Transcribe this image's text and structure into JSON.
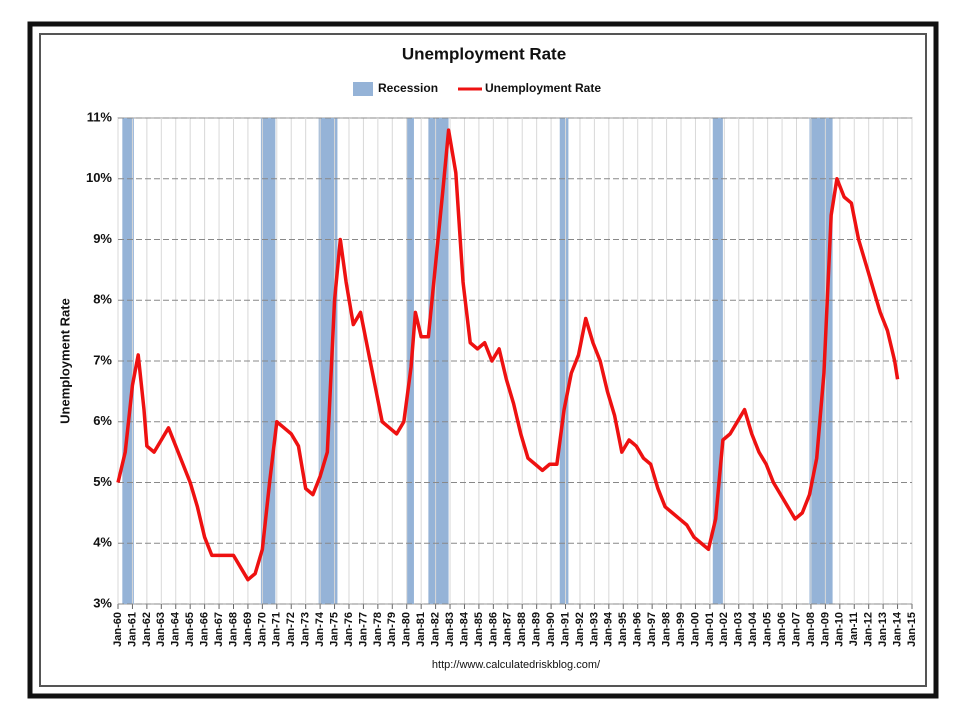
{
  "chart_data": {
    "type": "line",
    "title": "Unemployment Rate",
    "y_label": "Unemployment Rate",
    "source": "http://www.calculatedriskblog.com/",
    "legend": "top",
    "grid": true,
    "recessions": {
      "name": "Recession",
      "color": "#95b3d7",
      "periods": [
        [
          1960.3,
          1961.1
        ],
        [
          1969.9,
          1970.9
        ],
        [
          1973.9,
          1975.2
        ],
        [
          1980.0,
          1980.5
        ],
        [
          1981.5,
          1982.9
        ],
        [
          1990.6,
          1991.2
        ],
        [
          2001.2,
          2001.9
        ],
        [
          2007.9,
          2009.5
        ]
      ]
    },
    "x": [
      1960.0,
      1960.5,
      1961.0,
      1961.4,
      1961.8,
      1962.0,
      1962.5,
      1963.0,
      1963.5,
      1964.0,
      1964.5,
      1965.0,
      1965.5,
      1966.0,
      1966.5,
      1967.0,
      1967.5,
      1968.0,
      1968.5,
      1969.0,
      1969.5,
      1970.0,
      1970.5,
      1971.0,
      1971.5,
      1972.0,
      1972.5,
      1973.0,
      1973.5,
      1974.0,
      1974.5,
      1975.0,
      1975.4,
      1975.8,
      1976.3,
      1976.8,
      1977.3,
      1977.8,
      1978.3,
      1978.8,
      1979.3,
      1979.8,
      1980.3,
      1980.6,
      1981.0,
      1981.5,
      1982.0,
      1982.5,
      1982.9,
      1983.4,
      1983.9,
      1984.4,
      1984.9,
      1985.4,
      1985.9,
      1986.4,
      1986.9,
      1987.4,
      1987.9,
      1988.4,
      1988.9,
      1989.4,
      1989.9,
      1990.4,
      1990.9,
      1991.4,
      1991.9,
      1992.4,
      1992.9,
      1993.4,
      1993.9,
      1994.4,
      1994.9,
      1995.4,
      1995.9,
      1996.4,
      1996.9,
      1997.4,
      1997.9,
      1998.4,
      1998.9,
      1999.4,
      1999.9,
      2000.4,
      2000.9,
      2001.4,
      2001.9,
      2002.4,
      2002.9,
      2003.4,
      2003.9,
      2004.4,
      2004.9,
      2005.4,
      2005.9,
      2006.4,
      2006.9,
      2007.4,
      2007.9,
      2008.4,
      2008.9,
      2009.4,
      2009.8,
      2010.3,
      2010.8,
      2011.3,
      2011.8,
      2012.3,
      2012.8,
      2013.3,
      2013.8,
      2014.0
    ],
    "series": [
      {
        "name": "Unemployment Rate",
        "color": "#ee1111",
        "values": [
          5.0,
          5.5,
          6.6,
          7.1,
          6.2,
          5.6,
          5.5,
          5.7,
          5.9,
          5.6,
          5.3,
          5.0,
          4.6,
          4.1,
          3.8,
          3.8,
          3.8,
          3.8,
          3.6,
          3.4,
          3.5,
          3.9,
          5.0,
          6.0,
          5.9,
          5.8,
          5.6,
          4.9,
          4.8,
          5.1,
          5.5,
          8.0,
          9.0,
          8.3,
          7.6,
          7.8,
          7.2,
          6.6,
          6.0,
          5.9,
          5.8,
          6.0,
          6.9,
          7.8,
          7.4,
          7.4,
          8.6,
          9.8,
          10.8,
          10.1,
          8.3,
          7.3,
          7.2,
          7.3,
          7.0,
          7.2,
          6.7,
          6.3,
          5.8,
          5.4,
          5.3,
          5.2,
          5.3,
          5.3,
          6.2,
          6.8,
          7.1,
          7.7,
          7.3,
          7.0,
          6.5,
          6.1,
          5.5,
          5.7,
          5.6,
          5.4,
          5.3,
          4.9,
          4.6,
          4.5,
          4.4,
          4.3,
          4.1,
          4.0,
          3.9,
          4.4,
          5.7,
          5.8,
          6.0,
          6.2,
          5.8,
          5.5,
          5.3,
          5.0,
          4.8,
          4.6,
          4.4,
          4.5,
          4.8,
          5.4,
          6.8,
          9.4,
          10.0,
          9.7,
          9.6,
          9.0,
          8.6,
          8.2,
          7.8,
          7.5,
          7.0,
          6.7
        ]
      }
    ],
    "xlim": [
      1960,
      2015
    ],
    "ylim": [
      3,
      11
    ],
    "yticks": [
      {
        "value": 3,
        "label": "3%"
      },
      {
        "value": 4,
        "label": "4%"
      },
      {
        "value": 5,
        "label": "5%"
      },
      {
        "value": 6,
        "label": "6%"
      },
      {
        "value": 7,
        "label": "7%"
      },
      {
        "value": 8,
        "label": "8%"
      },
      {
        "value": 9,
        "label": "9%"
      },
      {
        "value": 10,
        "label": "10%"
      },
      {
        "value": 11,
        "label": "11%"
      }
    ],
    "xticks": [
      {
        "value": 1960,
        "label": "Jan-60"
      },
      {
        "value": 1961,
        "label": "Jan-61"
      },
      {
        "value": 1962,
        "label": "Jan-62"
      },
      {
        "value": 1963,
        "label": "Jan-63"
      },
      {
        "value": 1964,
        "label": "Jan-64"
      },
      {
        "value": 1965,
        "label": "Jan-65"
      },
      {
        "value": 1966,
        "label": "Jan-66"
      },
      {
        "value": 1967,
        "label": "Jan-67"
      },
      {
        "value": 1968,
        "label": "Jan-68"
      },
      {
        "value": 1969,
        "label": "Jan-69"
      },
      {
        "value": 1970,
        "label": "Jan-70"
      },
      {
        "value": 1971,
        "label": "Jan-71"
      },
      {
        "value": 1972,
        "label": "Jan-72"
      },
      {
        "value": 1973,
        "label": "Jan-73"
      },
      {
        "value": 1974,
        "label": "Jan-74"
      },
      {
        "value": 1975,
        "label": "Jan-75"
      },
      {
        "value": 1976,
        "label": "Jan-76"
      },
      {
        "value": 1977,
        "label": "Jan-77"
      },
      {
        "value": 1978,
        "label": "Jan-78"
      },
      {
        "value": 1979,
        "label": "Jan-79"
      },
      {
        "value": 1980,
        "label": "Jan-80"
      },
      {
        "value": 1981,
        "label": "Jan-81"
      },
      {
        "value": 1982,
        "label": "Jan-82"
      },
      {
        "value": 1983,
        "label": "Jan-83"
      },
      {
        "value": 1984,
        "label": "Jan-84"
      },
      {
        "value": 1985,
        "label": "Jan-85"
      },
      {
        "value": 1986,
        "label": "Jan-86"
      },
      {
        "value": 1987,
        "label": "Jan-87"
      },
      {
        "value": 1988,
        "label": "Jan-88"
      },
      {
        "value": 1989,
        "label": "Jan-89"
      },
      {
        "value": 1990,
        "label": "Jan-90"
      },
      {
        "value": 1991,
        "label": "Jan-91"
      },
      {
        "value": 1992,
        "label": "Jan-92"
      },
      {
        "value": 1993,
        "label": "Jan-93"
      },
      {
        "value": 1994,
        "label": "Jan-94"
      },
      {
        "value": 1995,
        "label": "Jan-95"
      },
      {
        "value": 1996,
        "label": "Jan-96"
      },
      {
        "value": 1997,
        "label": "Jan-97"
      },
      {
        "value": 1998,
        "label": "Jan-98"
      },
      {
        "value": 1999,
        "label": "Jan-99"
      },
      {
        "value": 2000,
        "label": "Jan-00"
      },
      {
        "value": 2001,
        "label": "Jan-01"
      },
      {
        "value": 2002,
        "label": "Jan-02"
      },
      {
        "value": 2003,
        "label": "Jan-03"
      },
      {
        "value": 2004,
        "label": "Jan-04"
      },
      {
        "value": 2005,
        "label": "Jan-05"
      },
      {
        "value": 2006,
        "label": "Jan-06"
      },
      {
        "value": 2007,
        "label": "Jan-07"
      },
      {
        "value": 2008,
        "label": "Jan-08"
      },
      {
        "value": 2009,
        "label": "Jan-09"
      },
      {
        "value": 2010,
        "label": "Jan-10"
      },
      {
        "value": 2011,
        "label": "Jan-11"
      },
      {
        "value": 2012,
        "label": "Jan-12"
      },
      {
        "value": 2013,
        "label": "Jan-13"
      },
      {
        "value": 2014,
        "label": "Jan-14"
      },
      {
        "value": 2015,
        "label": "Jan-15"
      }
    ]
  }
}
